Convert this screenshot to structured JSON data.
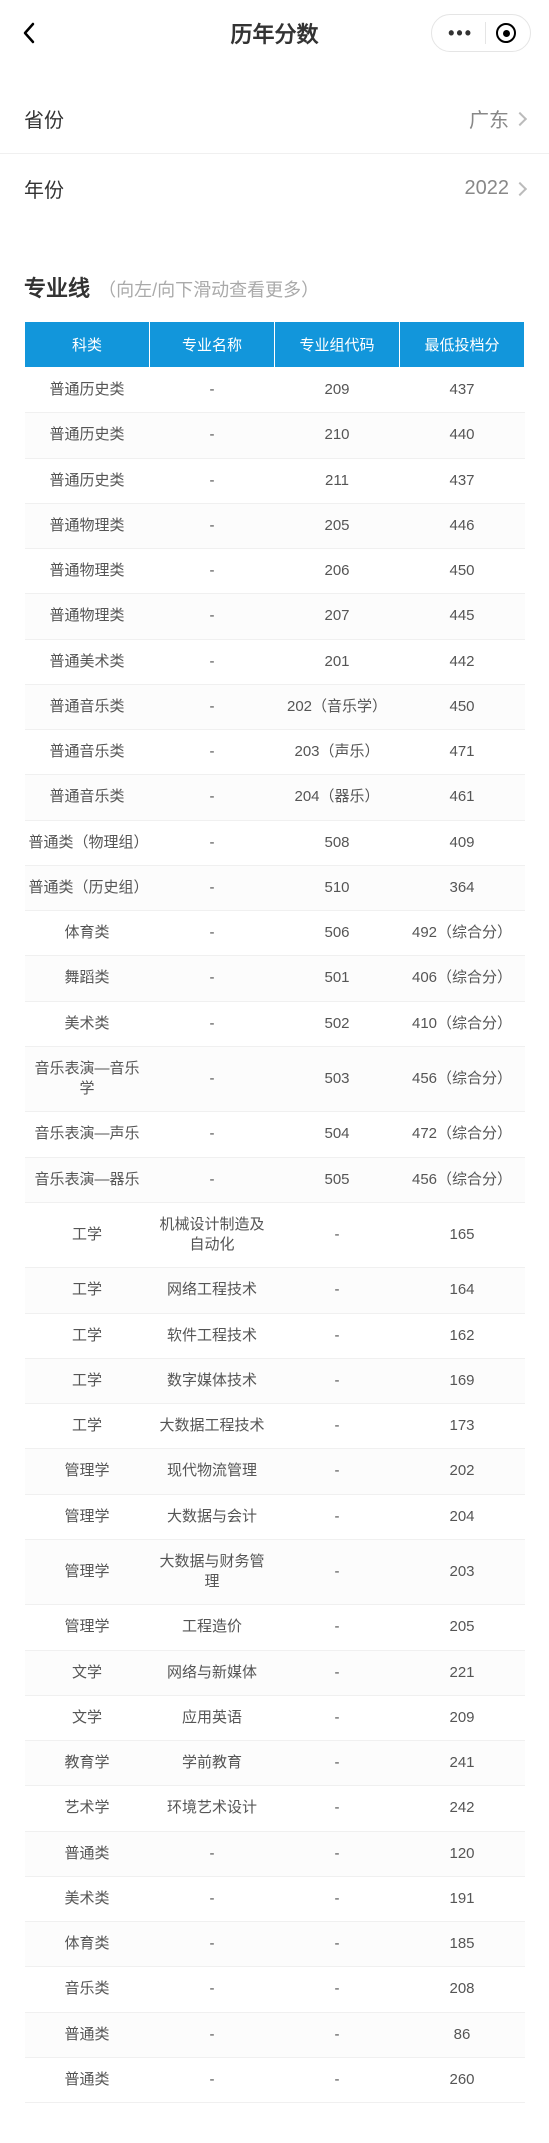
{
  "header": {
    "title": "历年分数"
  },
  "filters": {
    "province_label": "省份",
    "province_value": "广东",
    "year_label": "年份",
    "year_value": "2022"
  },
  "section": {
    "title": "专业线",
    "hint": "（向左/向下滑动查看更多）"
  },
  "table": {
    "columns": [
      "科类",
      "专业名称",
      "专业组代码",
      "最低投档分"
    ],
    "header_bg": "#1296db",
    "header_fg": "#ffffff",
    "border_color": "#f0f0f0",
    "rows": [
      [
        "普通历史类",
        "-",
        "209",
        "437"
      ],
      [
        "普通历史类",
        "-",
        "210",
        "440"
      ],
      [
        "普通历史类",
        "-",
        "211",
        "437"
      ],
      [
        "普通物理类",
        "-",
        "205",
        "446"
      ],
      [
        "普通物理类",
        "-",
        "206",
        "450"
      ],
      [
        "普通物理类",
        "-",
        "207",
        "445"
      ],
      [
        "普通美术类",
        "-",
        "201",
        "442"
      ],
      [
        "普通音乐类",
        "-",
        "202（音乐学）",
        "450"
      ],
      [
        "普通音乐类",
        "-",
        "203（声乐）",
        "471"
      ],
      [
        "普通音乐类",
        "-",
        "204（器乐）",
        "461"
      ],
      [
        "普通类（物理组）",
        "-",
        "508",
        "409"
      ],
      [
        "普通类（历史组）",
        "-",
        "510",
        "364"
      ],
      [
        "体育类",
        "-",
        "506",
        "492（综合分）"
      ],
      [
        "舞蹈类",
        "-",
        "501",
        "406（综合分）"
      ],
      [
        "美术类",
        "-",
        "502",
        "410（综合分）"
      ],
      [
        "音乐表演—音乐学",
        "-",
        "503",
        "456（综合分）"
      ],
      [
        "音乐表演—声乐",
        "-",
        "504",
        "472（综合分）"
      ],
      [
        "音乐表演—器乐",
        "-",
        "505",
        "456（综合分）"
      ],
      [
        "工学",
        "机械设计制造及自动化",
        "-",
        "165"
      ],
      [
        "工学",
        "网络工程技术",
        "-",
        "164"
      ],
      [
        "工学",
        "软件工程技术",
        "-",
        "162"
      ],
      [
        "工学",
        "数字媒体技术",
        "-",
        "169"
      ],
      [
        "工学",
        "大数据工程技术",
        "-",
        "173"
      ],
      [
        "管理学",
        "现代物流管理",
        "-",
        "202"
      ],
      [
        "管理学",
        "大数据与会计",
        "-",
        "204"
      ],
      [
        "管理学",
        "大数据与财务管理",
        "-",
        "203"
      ],
      [
        "管理学",
        "工程造价",
        "-",
        "205"
      ],
      [
        "文学",
        "网络与新媒体",
        "-",
        "221"
      ],
      [
        "文学",
        "应用英语",
        "-",
        "209"
      ],
      [
        "教育学",
        "学前教育",
        "-",
        "241"
      ],
      [
        "艺术学",
        "环境艺术设计",
        "-",
        "242"
      ],
      [
        "普通类",
        "-",
        "-",
        "120"
      ],
      [
        "美术类",
        "-",
        "-",
        "191"
      ],
      [
        "体育类",
        "-",
        "-",
        "185"
      ],
      [
        "音乐类",
        "-",
        "-",
        "208"
      ],
      [
        "普通类",
        "-",
        "-",
        "86"
      ],
      [
        "普通类",
        "-",
        "-",
        "260"
      ]
    ]
  }
}
